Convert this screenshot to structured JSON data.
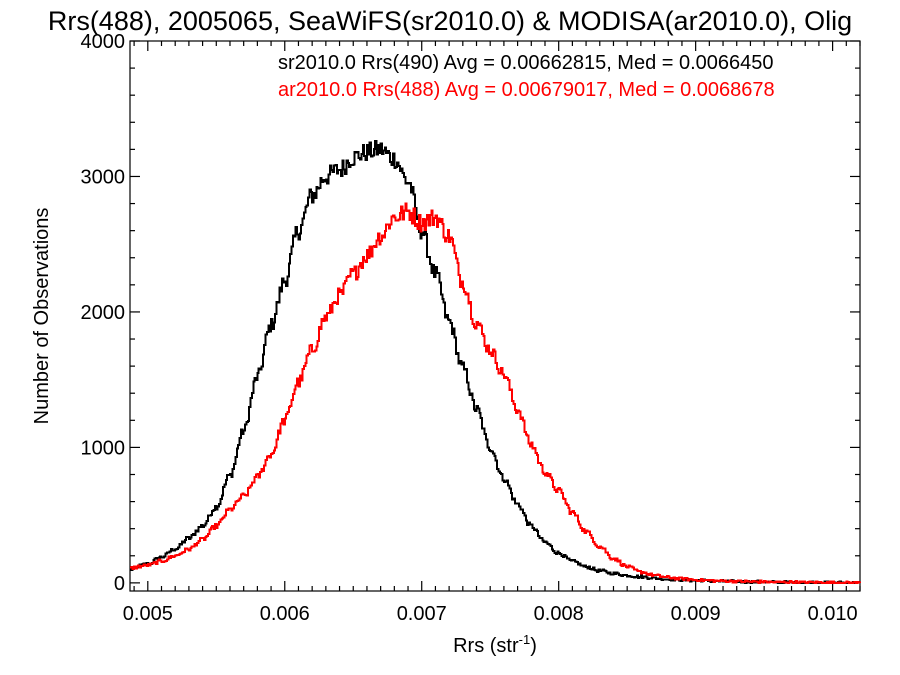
{
  "chart_data": {
    "type": "line",
    "step": true,
    "title": "Rrs(488), 2005065, SeaWiFS(sr2010.0) & MODISA(ar2010.0), Olig",
    "xlabel": "Rrs (str",
    "xlabel_sup": "-1",
    "xlabel_end": ")",
    "ylabel": "Number of Observations",
    "xlim": [
      0.00487,
      0.0102
    ],
    "ylim": [
      -60,
      4000
    ],
    "xticks": [
      0.005,
      0.006,
      0.007,
      0.008,
      0.009,
      0.01
    ],
    "xtick_labels": [
      "0.005",
      "0.006",
      "0.007",
      "0.008",
      "0.009",
      "0.010"
    ],
    "yticks": [
      0,
      1000,
      2000,
      3000,
      4000
    ],
    "ytick_labels": [
      "0",
      "1000",
      "2000",
      "3000",
      "4000"
    ],
    "legend_position": "top-right",
    "series": [
      {
        "legend": "sr2010.0 Rrs(490) Avg = 0.00662815, Med = 0.0066450",
        "color": "#000000",
        "points": [
          [
            0.00487,
            100
          ],
          [
            0.005,
            140
          ],
          [
            0.0051,
            190
          ],
          [
            0.0052,
            250
          ],
          [
            0.0053,
            330
          ],
          [
            0.0054,
            420
          ],
          [
            0.0055,
            560
          ],
          [
            0.0056,
            790
          ],
          [
            0.0057,
            1120
          ],
          [
            0.0058,
            1520
          ],
          [
            0.0059,
            1900
          ],
          [
            0.006,
            2230
          ],
          [
            0.0061,
            2600
          ],
          [
            0.0062,
            2860
          ],
          [
            0.0063,
            3000
          ],
          [
            0.0064,
            3050
          ],
          [
            0.0065,
            3140
          ],
          [
            0.0066,
            3180
          ],
          [
            0.0067,
            3200
          ],
          [
            0.0068,
            3130
          ],
          [
            0.0069,
            2960
          ],
          [
            0.007,
            2600
          ],
          [
            0.0071,
            2280
          ],
          [
            0.0072,
            1930
          ],
          [
            0.0073,
            1590
          ],
          [
            0.0074,
            1280
          ],
          [
            0.0075,
            1000
          ],
          [
            0.0076,
            770
          ],
          [
            0.0077,
            580
          ],
          [
            0.0078,
            420
          ],
          [
            0.0079,
            300
          ],
          [
            0.008,
            220
          ],
          [
            0.0081,
            160
          ],
          [
            0.0082,
            120
          ],
          [
            0.0083,
            90
          ],
          [
            0.0084,
            70
          ],
          [
            0.0085,
            55
          ],
          [
            0.0086,
            45
          ],
          [
            0.0087,
            35
          ],
          [
            0.0088,
            28
          ],
          [
            0.0089,
            22
          ],
          [
            0.009,
            18
          ],
          [
            0.0092,
            12
          ],
          [
            0.0094,
            8
          ],
          [
            0.0096,
            5
          ],
          [
            0.0098,
            3
          ],
          [
            0.01,
            2
          ],
          [
            0.0102,
            0
          ]
        ]
      },
      {
        "legend": "ar2010.0 Rrs(488) Avg = 0.00679017, Med = 0.0068678",
        "color": "#ff0000",
        "points": [
          [
            0.00487,
            110
          ],
          [
            0.005,
            130
          ],
          [
            0.0051,
            160
          ],
          [
            0.0052,
            200
          ],
          [
            0.0053,
            250
          ],
          [
            0.0054,
            320
          ],
          [
            0.0055,
            420
          ],
          [
            0.0056,
            540
          ],
          [
            0.0057,
            640
          ],
          [
            0.0058,
            780
          ],
          [
            0.0059,
            950
          ],
          [
            0.006,
            1200
          ],
          [
            0.0061,
            1480
          ],
          [
            0.0062,
            1720
          ],
          [
            0.0063,
            1960
          ],
          [
            0.0064,
            2120
          ],
          [
            0.0065,
            2280
          ],
          [
            0.0066,
            2420
          ],
          [
            0.0067,
            2560
          ],
          [
            0.0068,
            2700
          ],
          [
            0.0069,
            2740
          ],
          [
            0.007,
            2660
          ],
          [
            0.0071,
            2700
          ],
          [
            0.0072,
            2560
          ],
          [
            0.0073,
            2220
          ],
          [
            0.0074,
            1920
          ],
          [
            0.0075,
            1720
          ],
          [
            0.0076,
            1540
          ],
          [
            0.0077,
            1280
          ],
          [
            0.0078,
            1020
          ],
          [
            0.0079,
            820
          ],
          [
            0.008,
            680
          ],
          [
            0.0081,
            520
          ],
          [
            0.0082,
            380
          ],
          [
            0.0083,
            270
          ],
          [
            0.0084,
            180
          ],
          [
            0.0085,
            120
          ],
          [
            0.0086,
            80
          ],
          [
            0.0087,
            55
          ],
          [
            0.0088,
            40
          ],
          [
            0.0089,
            30
          ],
          [
            0.009,
            22
          ],
          [
            0.0092,
            14
          ],
          [
            0.0094,
            9
          ],
          [
            0.0096,
            6
          ],
          [
            0.0098,
            4
          ],
          [
            0.01,
            2
          ],
          [
            0.0102,
            0
          ]
        ]
      }
    ]
  }
}
